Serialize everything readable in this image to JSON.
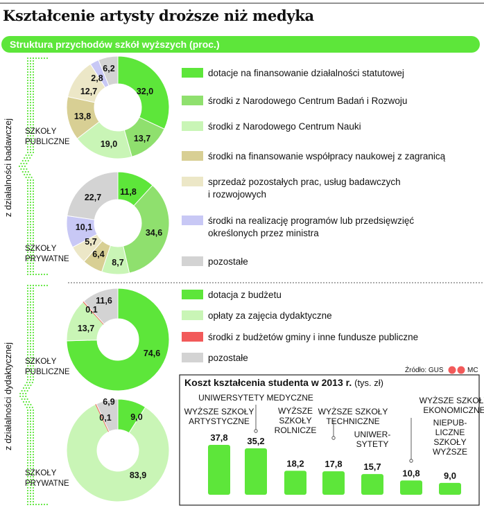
{
  "title": "Kształcenie artysty droższe niż medyka",
  "subtitle": "Struktura przychodów szkół wyższych (proc.)",
  "source": "Źródło: GUS",
  "source_mark": "MC",
  "side_labels": {
    "research": "z działalności badawczej",
    "teaching": "z działalności dydaktycznej"
  },
  "colors": {
    "green": "#5de63a",
    "mid_green": "#8fe06e",
    "light_green": "#c9f5b6",
    "olive": "#d8cf94",
    "cream": "#ece7c7",
    "lavender": "#c8c8f5",
    "red": "#f25a5a",
    "grey": "#d3d3d3"
  },
  "legend_research": [
    {
      "label": "dotacje na finansowanie działalności statutowej",
      "color": "#5de63a"
    },
    {
      "label": "środki z Narodowego Centrum Badań i Rozwoju",
      "color": "#8fe06e"
    },
    {
      "label": "środki z Narodowego Centrum Nauki",
      "color": "#c9f5b6"
    },
    {
      "label": "środki na finansowanie współpracy naukowej z zagranicą",
      "color": "#d8cf94"
    },
    {
      "label": "sprzedaż pozostałych prac, usług badawczych",
      "label2": "i rozwojowych",
      "color": "#ece7c7"
    },
    {
      "label": "środki na realizację programów lub przedsięwzięć",
      "label2": "określonych przez ministra",
      "color": "#c8c8f5"
    },
    {
      "label": "pozostałe",
      "color": "#d3d3d3"
    }
  ],
  "legend_teaching": [
    {
      "label": "dotacja z budżetu",
      "color": "#5de63a"
    },
    {
      "label": "opłaty za zajęcia dydaktyczne",
      "color": "#c9f5b6"
    },
    {
      "label": "środki z budżetów gminy i inne fundusze publiczne",
      "color": "#f25a5a"
    },
    {
      "label": "pozostałe",
      "color": "#d3d3d3"
    }
  ],
  "chart_data": [
    {
      "type": "pie",
      "group": "research",
      "label_lines": [
        "SZKOŁY",
        "PUBLICZNE"
      ],
      "values": [
        32.0,
        13.7,
        19.0,
        13.8,
        12.7,
        2.8,
        6.2
      ],
      "labels": [
        "32,0",
        "13,7",
        "19,0",
        "13,8",
        "12,7",
        "2,8",
        "6,2"
      ],
      "colors": [
        "#5de63a",
        "#8fe06e",
        "#c9f5b6",
        "#d8cf94",
        "#ece7c7",
        "#c8c8f5",
        "#d3d3d3"
      ]
    },
    {
      "type": "pie",
      "group": "research",
      "label_lines": [
        "SZKOŁY",
        "PRYWATNE"
      ],
      "values": [
        11.8,
        34.6,
        8.7,
        6.4,
        5.7,
        10.1,
        22.7
      ],
      "labels": [
        "11,8",
        "34,6",
        "8,7",
        "6,4",
        "5,7",
        "10,1",
        "22,7"
      ],
      "colors": [
        "#5de63a",
        "#8fe06e",
        "#c9f5b6",
        "#d8cf94",
        "#ece7c7",
        "#c8c8f5",
        "#d3d3d3"
      ]
    },
    {
      "type": "pie",
      "group": "teaching",
      "label_lines": [
        "SZKOŁY",
        "PUBLICZNE"
      ],
      "values": [
        74.6,
        13.7,
        0.1,
        11.6
      ],
      "labels": [
        "74,6",
        "13,7",
        "0,1",
        "11,6"
      ],
      "colors": [
        "#5de63a",
        "#c9f5b6",
        "#f25a5a",
        "#d3d3d3"
      ]
    },
    {
      "type": "pie",
      "group": "teaching",
      "label_lines": [
        "SZKOŁY",
        "PRYWATNE"
      ],
      "values": [
        9.0,
        83.9,
        0.1,
        6.9
      ],
      "labels": [
        "9,0",
        "83,9",
        "0,1",
        "6,9"
      ],
      "colors": [
        "#5de63a",
        "#c9f5b6",
        "#f25a5a",
        "#d3d3d3"
      ]
    },
    {
      "type": "bar",
      "title": "Koszt kształcenia studenta w 2013 r.",
      "unit": "(tys. zł)",
      "categories": [
        [
          "WYŻSZE SZKOŁY",
          "ARTYSTYCZNE"
        ],
        [
          "UNIWERSYTETY MEDYCZNE"
        ],
        [
          "WYŻSZE",
          "SZKOŁY",
          "ROLNICZE"
        ],
        [
          "WYŻSZE SZKOŁY",
          "TECHNICZNE"
        ],
        [
          "UNIWER-",
          "SYTETY"
        ],
        [
          "WYŻSZE SZKOŁY",
          "EKONOMICZNE"
        ],
        [
          "NIEPUB-",
          "LICZNE",
          "SZKOŁY",
          "WYŻSZE"
        ]
      ],
      "values": [
        37.8,
        35.2,
        18.2,
        17.8,
        15.7,
        10.8,
        9.0
      ],
      "value_labels": [
        "37,8",
        "35,2",
        "18,2",
        "17,8",
        "15,7",
        "10,8",
        "9,0"
      ]
    }
  ]
}
